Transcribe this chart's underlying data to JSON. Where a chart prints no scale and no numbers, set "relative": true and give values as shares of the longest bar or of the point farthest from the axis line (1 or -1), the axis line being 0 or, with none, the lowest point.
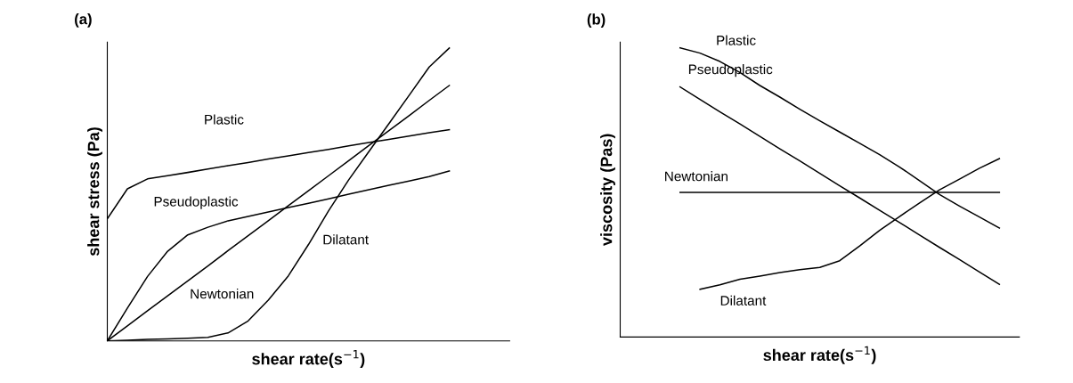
{
  "chart_data": [
    {
      "type": "line",
      "title": "(a)",
      "xlabel": "shear rate(s$^{−1}$)",
      "ylabel": "shear stress (Pa)",
      "relative": true,
      "legend": false,
      "marker": "none",
      "line_style": "solid",
      "categories": [
        null,
        null,
        null,
        null,
        null,
        null,
        null,
        null,
        null,
        null,
        null,
        null,
        null,
        null,
        null,
        null,
        null,
        null,
        null,
        null,
        null
      ],
      "series": [
        {
          "name": "Plastic",
          "color": "#000000",
          "values": [
            0.417,
            0.519,
            0.553,
            0.564,
            0.575,
            0.587,
            0.598,
            0.609,
            0.621,
            0.632,
            0.643,
            0.654,
            0.666,
            0.677,
            0.688,
            0.699,
            0.711,
            0.721,
            null,
            null,
            null
          ]
        },
        {
          "name": "Pseudoplastic",
          "color": "#000000",
          "values": [
            0,
            0.112,
            0.22,
            0.306,
            0.362,
            0.388,
            0.41,
            0.425,
            0.44,
            0.455,
            0.47,
            0.485,
            0.501,
            0.516,
            0.531,
            0.546,
            0.561,
            0.58,
            null,
            null,
            null
          ]
        },
        {
          "name": "Newtonian",
          "color": "#000000",
          "values": [
            0,
            0.051,
            0.103,
            0.154,
            0.205,
            0.256,
            0.308,
            0.359,
            0.41,
            0.462,
            0.513,
            0.564,
            0.615,
            0.667,
            0.718,
            0.769,
            0.821,
            0.872,
            null,
            null,
            null
          ]
        },
        {
          "name": "Dilatant",
          "color": "#000000",
          "values": [
            0,
            0.002,
            0.005,
            0.007,
            0.009,
            0.012,
            0.027,
            0.068,
            0.139,
            0.222,
            0.329,
            0.444,
            0.55,
            0.646,
            0.742,
            0.838,
            0.935,
            1,
            null,
            null,
            null
          ]
        }
      ]
    },
    {
      "type": "line",
      "title": "(b)",
      "xlabel": "shear rate(s$^{−1}$)",
      "ylabel": "viscosity (Pas)",
      "relative": true,
      "legend": false,
      "marker": "none",
      "line_style": "solid",
      "categories": [
        null,
        null,
        null,
        null,
        null,
        null,
        null,
        null,
        null,
        null,
        null,
        null,
        null,
        null,
        null,
        null,
        null,
        null,
        null,
        null,
        null
      ],
      "series": [
        {
          "name": "Plastic",
          "color": "#000000",
          "values": [
            null,
            null,
            null,
            1,
            0.982,
            0.953,
            0.915,
            0.87,
            0.83,
            0.788,
            0.748,
            0.709,
            0.67,
            0.631,
            0.588,
            0.541,
            0.493,
            0.453,
            0.415,
            0.377,
            null
          ]
        },
        {
          "name": "Pseudoplastic",
          "color": "#000000",
          "values": [
            null,
            null,
            null,
            0.865,
            0.822,
            0.779,
            0.737,
            0.694,
            0.651,
            0.609,
            0.566,
            0.523,
            0.481,
            0.438,
            0.396,
            0.353,
            0.31,
            0.268,
            0.225,
            0.182,
            null
          ]
        },
        {
          "name": "Newtonian",
          "color": "#000000",
          "values": [
            null,
            null,
            null,
            0.5,
            0.5,
            0.5,
            0.5,
            0.5,
            0.5,
            0.5,
            0.5,
            0.5,
            0.5,
            0.5,
            0.5,
            0.5,
            0.5,
            0.5,
            0.5,
            0.5,
            null
          ]
        },
        {
          "name": "Dilatant",
          "color": "#000000",
          "values": [
            null,
            null,
            null,
            null,
            0.165,
            0.181,
            0.2,
            0.211,
            0.223,
            0.233,
            0.241,
            0.264,
            0.315,
            0.369,
            0.417,
            0.464,
            0.509,
            0.546,
            0.584,
            0.617,
            null
          ]
        }
      ]
    }
  ]
}
